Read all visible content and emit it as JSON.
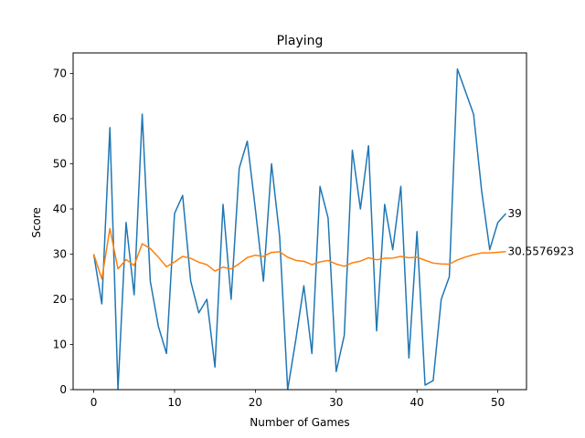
{
  "chart_data": {
    "type": "line",
    "title": "Playing",
    "xlabel": "Number of Games",
    "ylabel": "Score",
    "xlim": [
      -2.55,
      53.55
    ],
    "ylim": [
      0,
      74.55
    ],
    "xticks": [
      0,
      10,
      20,
      30,
      40,
      50
    ],
    "yticks": [
      0,
      10,
      20,
      30,
      40,
      50,
      60,
      70
    ],
    "grid": false,
    "legend": "none",
    "series": [
      {
        "color": "#1f77b4",
        "x": [
          0,
          1,
          2,
          3,
          4,
          5,
          6,
          7,
          8,
          9,
          10,
          11,
          12,
          13,
          14,
          15,
          16,
          17,
          18,
          19,
          20,
          21,
          22,
          23,
          24,
          25,
          26,
          27,
          28,
          29,
          30,
          31,
          32,
          33,
          34,
          35,
          36,
          37,
          38,
          39,
          40,
          41,
          42,
          43,
          44,
          45,
          46,
          47,
          48,
          49,
          50,
          51
        ],
        "values": [
          30,
          19,
          58,
          0,
          37,
          21,
          61,
          24,
          14,
          8,
          39,
          43,
          24,
          17,
          20,
          5,
          41,
          20,
          49,
          55,
          40,
          24,
          50,
          34,
          0,
          11,
          23,
          8,
          45,
          38,
          4,
          12,
          53,
          40,
          54,
          13,
          41,
          31,
          45,
          7,
          35,
          1,
          2,
          20,
          25,
          71,
          66,
          61,
          44,
          31,
          37,
          39
        ]
      },
      {
        "color": "#ff7f0e",
        "x": [
          0,
          1,
          2,
          3,
          4,
          5,
          6,
          7,
          8,
          9,
          10,
          11,
          12,
          13,
          14,
          15,
          16,
          17,
          18,
          19,
          20,
          21,
          22,
          23,
          24,
          25,
          26,
          27,
          28,
          29,
          30,
          31,
          32,
          33,
          34,
          35,
          36,
          37,
          38,
          39,
          40,
          41,
          42,
          43,
          44,
          45,
          46,
          47,
          48,
          49,
          50,
          51
        ],
        "values": [
          30,
          24.5,
          35.67,
          26.75,
          28.8,
          27.5,
          32.29,
          31.25,
          29.33,
          27.2,
          28.27,
          29.5,
          29.08,
          28.21,
          27.67,
          26.25,
          27.12,
          26.72,
          27.89,
          29.25,
          29.76,
          29.5,
          30.39,
          30.54,
          29.32,
          28.62,
          28.41,
          27.68,
          28.28,
          28.6,
          27.81,
          27.31,
          28.09,
          28.44,
          29.2,
          28.75,
          29.08,
          29.13,
          29.49,
          29.2,
          29.32,
          28.64,
          28.02,
          27.84,
          27.78,
          28.72,
          29.36,
          29.87,
          30.27,
          30.28,
          30.41,
          30.5576923
        ]
      }
    ],
    "end_labels": [
      "39",
      "30.5576923"
    ]
  }
}
